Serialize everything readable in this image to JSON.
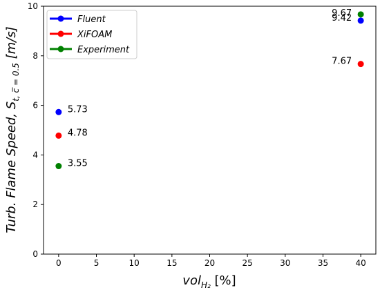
{
  "chart_data": {
    "type": "scatter",
    "x": [
      0,
      40
    ],
    "series": [
      {
        "name": "Fluent",
        "color": "#0000ff",
        "values": [
          5.73,
          9.42
        ]
      },
      {
        "name": "XiFOAM",
        "color": "#ff0000",
        "values": [
          4.78,
          7.67
        ]
      },
      {
        "name": "Experiment",
        "color": "#008000",
        "values": [
          3.55,
          9.67
        ]
      }
    ],
    "data_labels": [
      {
        "text": "5.73",
        "x": 0,
        "y": 5.73,
        "side": "right"
      },
      {
        "text": "4.78",
        "x": 0,
        "y": 4.78,
        "side": "right"
      },
      {
        "text": "3.55",
        "x": 0,
        "y": 3.55,
        "side": "right"
      },
      {
        "text": "9.67",
        "x": 40,
        "y": 9.67,
        "side": "left"
      },
      {
        "text": "9.42",
        "x": 40,
        "y": 9.42,
        "side": "left"
      },
      {
        "text": "7.67",
        "x": 40,
        "y": 7.67,
        "side": "left"
      }
    ],
    "xlabel": "vol",
    "xlabel_sub": "H₂",
    "xlabel_unit": " [%]",
    "ylabel": "Turb. Flame Speed,  S",
    "ylabel_sub": "t, c̅ = 0.5",
    "ylabel_unit": " [m/s]",
    "xlim": [
      -2,
      42
    ],
    "ylim": [
      0,
      10
    ],
    "xticks": [
      0,
      5,
      10,
      15,
      20,
      25,
      30,
      35,
      40
    ],
    "yticks": [
      0,
      2,
      4,
      6,
      8,
      10
    ],
    "grid": false,
    "legend_position": "top-left"
  }
}
